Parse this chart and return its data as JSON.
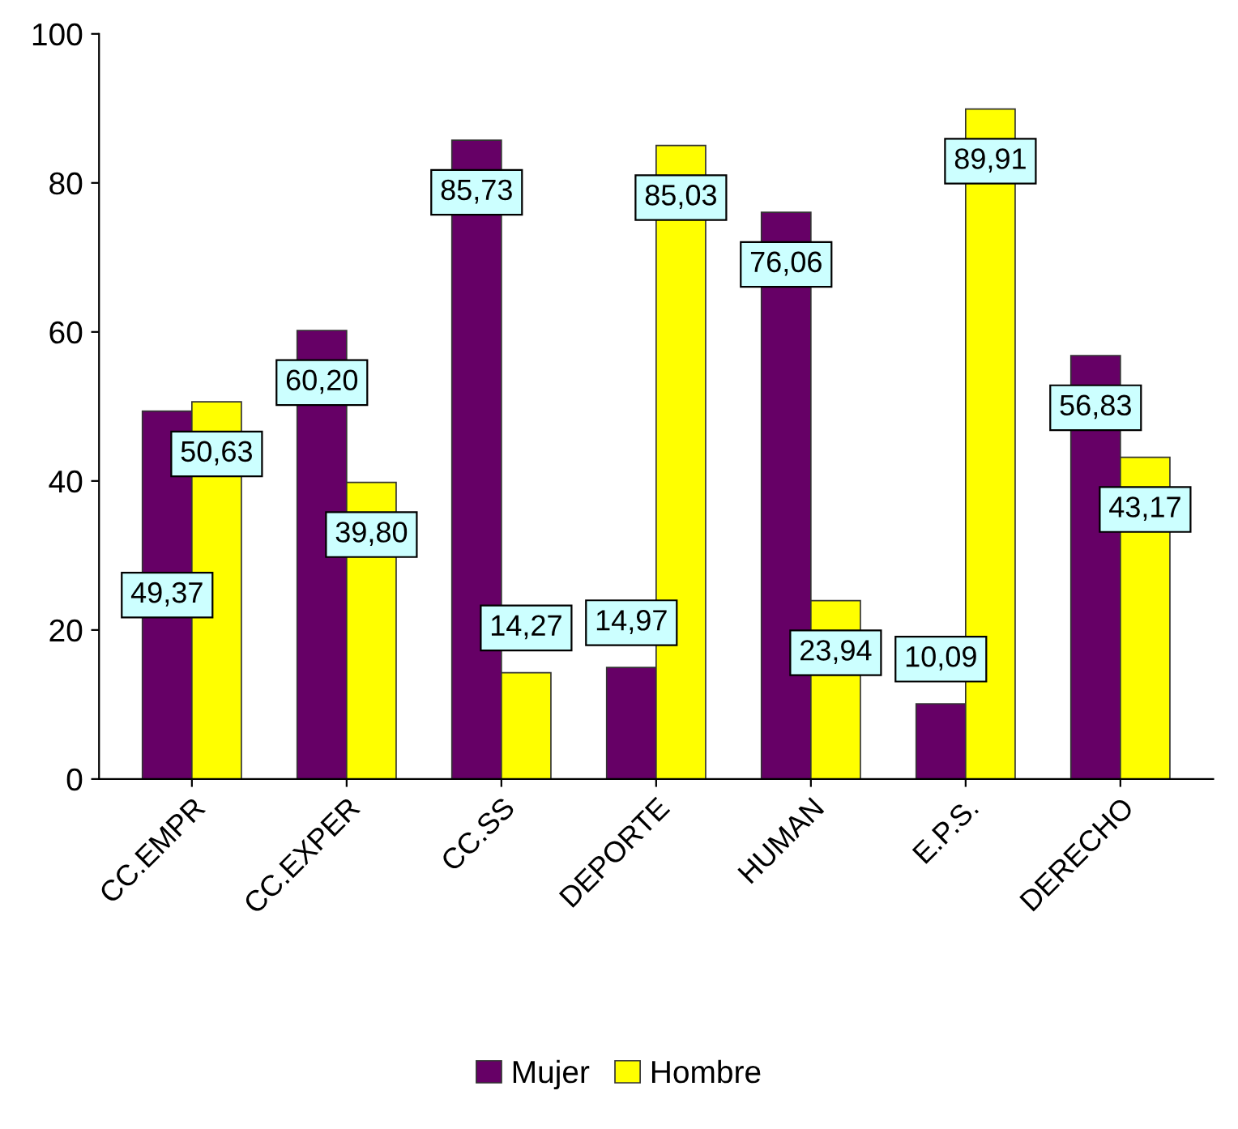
{
  "chart_data": {
    "type": "bar",
    "categories": [
      "CC.EMPR",
      "CC.EXPER",
      "CC.SS",
      "DEPORTE",
      "HUMAN",
      "E.P.S.",
      "DERECHO"
    ],
    "series": [
      {
        "name": "Mujer",
        "color": "#660066",
        "values": [
          49.37,
          60.2,
          85.73,
          14.97,
          76.06,
          10.09,
          56.83
        ],
        "value_labels": [
          "49,37",
          "60,20",
          "85,73",
          "14,97",
          "76,06",
          "10,09",
          "56,83"
        ]
      },
      {
        "name": "Hombre",
        "color": "#ffff00",
        "values": [
          50.63,
          39.8,
          14.27,
          85.03,
          23.94,
          89.91,
          43.17
        ],
        "value_labels": [
          "50,63",
          "39,80",
          "14,27",
          "85,03",
          "23,94",
          "89,91",
          "43,17"
        ]
      }
    ],
    "ylim": [
      0,
      100
    ],
    "yticks": [
      0,
      20,
      40,
      60,
      80,
      100
    ],
    "grid": false,
    "legend": "bottom"
  }
}
